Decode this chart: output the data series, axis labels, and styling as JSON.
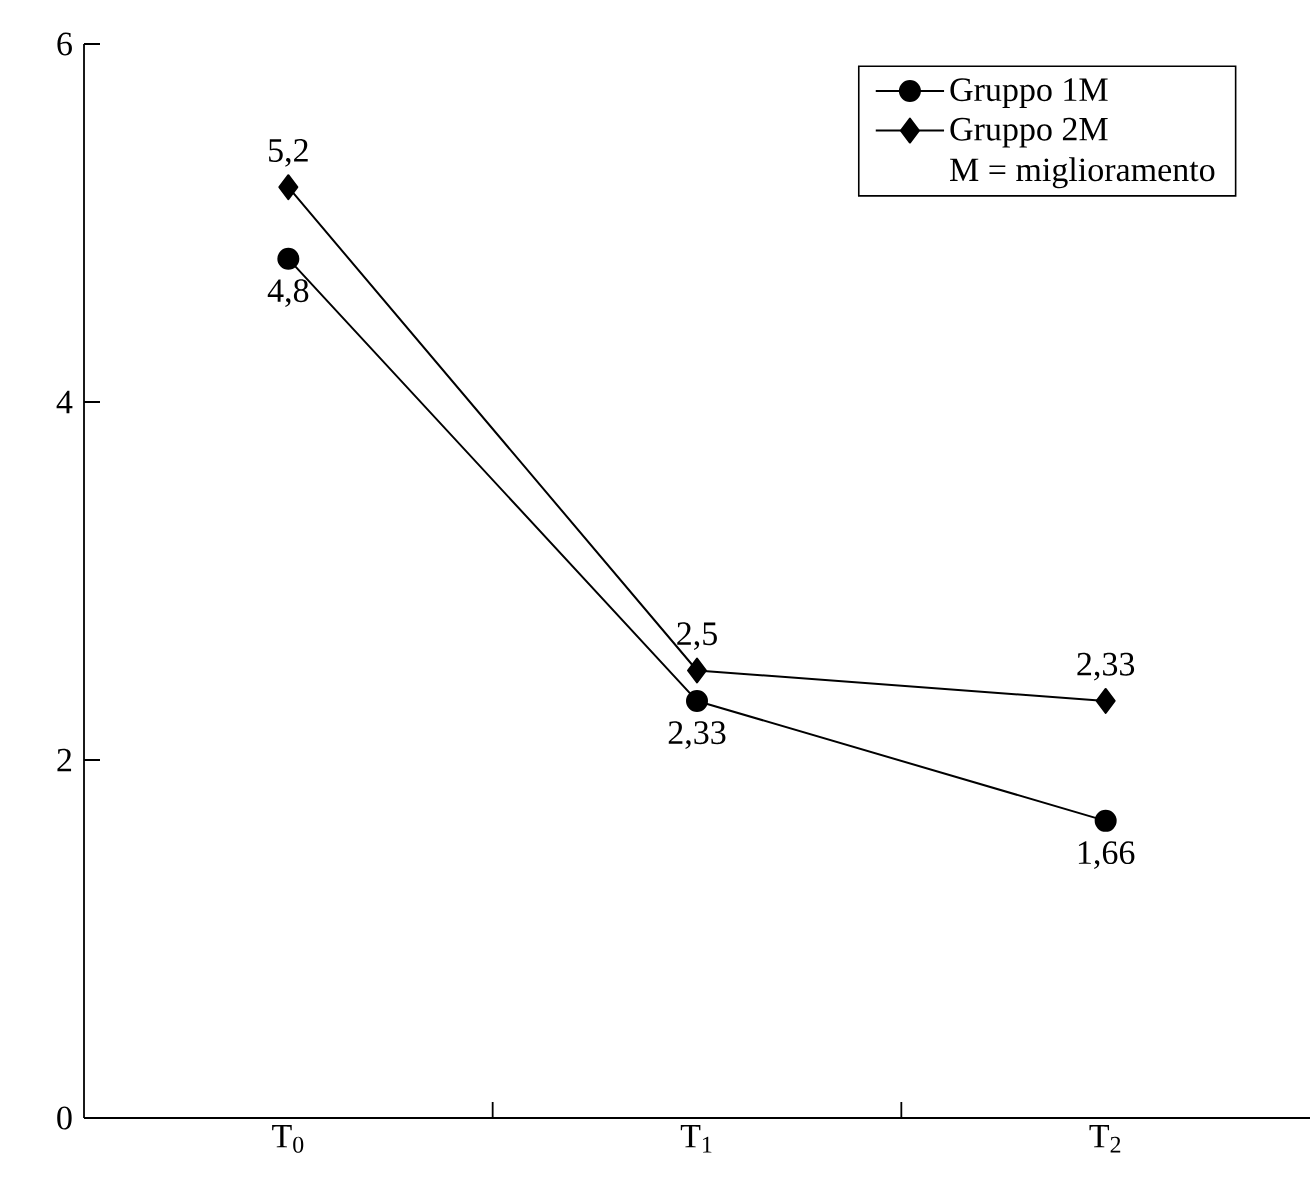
{
  "chart_data": {
    "type": "line",
    "categories": [
      "T$_{0}$",
      "T$_{1}$",
      "T$_{2}$"
    ],
    "series": [
      {
        "name": "Gruppo 1M",
        "color": "#000000",
        "marker": "circle",
        "values": [
          4.8,
          2.33,
          1.66
        ],
        "value_labels": [
          "4,8",
          "2,33",
          "1,66"
        ]
      },
      {
        "name": "Gruppo 2M",
        "color": "#000000",
        "marker": "diamond",
        "values": [
          5.2,
          2.5,
          2.33
        ],
        "value_labels": [
          "5,2",
          "2,5",
          "2,33"
        ]
      }
    ],
    "annotations": [
      "M = miglioramento"
    ],
    "ylim": [
      0,
      6
    ],
    "yticks": [
      0,
      2,
      4,
      6
    ],
    "legend": "top right",
    "grid": false,
    "line_style": "solid"
  }
}
